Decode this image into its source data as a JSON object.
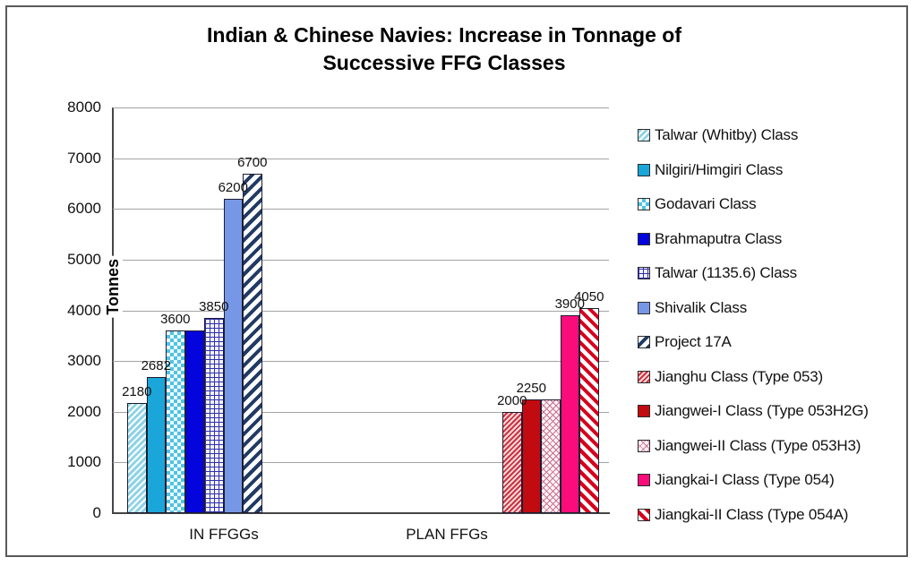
{
  "title": {
    "text": "Indian & Chinese Navies: Increase in Tonnage of Successive FFG Classes",
    "line1": "Indian & Chinese Navies: Increase in Tonnage of",
    "line2": "Successive FFG Classes"
  },
  "chart_data": {
    "type": "bar",
    "title": "Indian & Chinese Navies: Increase in Tonnage of Successive FFG Classes",
    "xlabel": "",
    "ylabel": "Tonnes",
    "ylim": [
      0,
      8000
    ],
    "ytick_step": 1000,
    "yticks": [
      8000,
      7000,
      6000,
      5000,
      4000,
      3000,
      2000,
      1000,
      0
    ],
    "grid": true,
    "legend_position": "right",
    "categories": [
      "IN FFGGs",
      "PLAN FFGs"
    ],
    "series": [
      {
        "name": "Talwar (Whitby) Class",
        "category": "IN FFGGs",
        "value": 2180,
        "data_label": "2180",
        "fill": "hatch-cyan",
        "color": "#8ed3e6"
      },
      {
        "name": "Nilgiri/Himgiri Class",
        "category": "IN FFGGs",
        "value": 2682,
        "data_label": "2682",
        "fill": "solid",
        "color": "#1ba6d9"
      },
      {
        "name": "Godavari Class",
        "category": "IN FFGGs",
        "value": 3600,
        "data_label": "3600",
        "fill": "checker-cyan",
        "color": "#4fc2e4"
      },
      {
        "name": "Brahmaputra Class",
        "category": "IN FFGGs",
        "value": 3600,
        "data_label": "",
        "fill": "solid",
        "color": "#0404dd"
      },
      {
        "name": "Talwar (1135.6) Class",
        "category": "IN FFGGs",
        "value": 3850,
        "data_label": "3850",
        "fill": "grid-navy",
        "color": "#3030ae"
      },
      {
        "name": "Shivalik Class",
        "category": "IN FFGGs",
        "value": 6200,
        "data_label": "6200",
        "fill": "solid",
        "color": "#7697e6"
      },
      {
        "name": "Project 17A",
        "category": "IN FFGGs",
        "value": 6700,
        "data_label": "6700",
        "fill": "hatch-navy",
        "color": "#203a64"
      },
      {
        "name": "Jianghu Class (Type 053)",
        "category": "PLAN FFGs",
        "value": 2000,
        "data_label": "2000",
        "fill": "hatch-red-fine",
        "color": "#cb3340"
      },
      {
        "name": "Jiangwei-I Class (Type 053H2G)",
        "category": "PLAN FFGs",
        "value": 2250,
        "data_label": "2250",
        "fill": "solid",
        "color": "#c20b10"
      },
      {
        "name": "Jiangwei-II Class (Type 053H3)",
        "category": "PLAN FFGs",
        "value": 2250,
        "data_label": "",
        "fill": "lattice-pink",
        "color": "#c9718f"
      },
      {
        "name": "Jiangkai-I Class (Type 054)",
        "category": "PLAN FFGs",
        "value": 3900,
        "data_label": "3900",
        "fill": "solid",
        "color": "#fa0d7b"
      },
      {
        "name": "Jiangkai-II Class (Type 054A)",
        "category": "PLAN FFGs",
        "value": 4050,
        "data_label": "4050",
        "fill": "hatch-red-bold",
        "color": "#d6001c"
      }
    ]
  }
}
